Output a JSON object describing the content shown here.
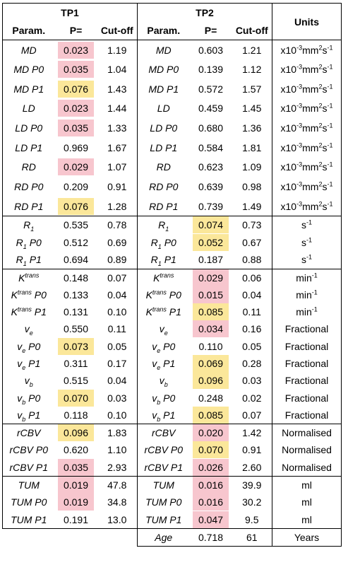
{
  "header": {
    "tp1": "TP1",
    "tp2": "TP2",
    "units": "Units",
    "param": "Param.",
    "p": "P=",
    "cutoff": "Cut-off"
  },
  "groups": [
    {
      "rows": [
        {
          "tp1": {
            "param": "MD",
            "p": "0.023",
            "hl": "pink",
            "cut": "1.19"
          },
          "tp2": {
            "param": "MD",
            "p": "0.603",
            "hl": "",
            "cut": "1.21"
          },
          "units": "x10-3mm2s-1"
        },
        {
          "tp1": {
            "param": "MD P0",
            "p": "0.035",
            "hl": "pink",
            "cut": "1.04"
          },
          "tp2": {
            "param": "MD P0",
            "p": "0.139",
            "hl": "",
            "cut": "1.12"
          },
          "units": "x10-3mm2s-1"
        },
        {
          "tp1": {
            "param": "MD P1",
            "p": "0.076",
            "hl": "yellow",
            "cut": "1.43"
          },
          "tp2": {
            "param": "MD P1",
            "p": "0.572",
            "hl": "",
            "cut": "1.57"
          },
          "units": "x10-3mm2s-1"
        },
        {
          "tp1": {
            "param": "LD",
            "p": "0.023",
            "hl": "pink",
            "cut": "1.44"
          },
          "tp2": {
            "param": "LD",
            "p": "0.459",
            "hl": "",
            "cut": "1.45"
          },
          "units": "x10-3mm2s-1"
        },
        {
          "tp1": {
            "param": "LD P0",
            "p": "0.035",
            "hl": "pink",
            "cut": "1.33"
          },
          "tp2": {
            "param": "LD P0",
            "p": "0.680",
            "hl": "",
            "cut": "1.36"
          },
          "units": "x10-3mm2s-1"
        },
        {
          "tp1": {
            "param": "LD P1",
            "p": "0.969",
            "hl": "",
            "cut": "1.67"
          },
          "tp2": {
            "param": "LD P1",
            "p": "0.584",
            "hl": "",
            "cut": "1.81"
          },
          "units": "x10-3mm2s-1"
        },
        {
          "tp1": {
            "param": "RD",
            "p": "0.029",
            "hl": "pink",
            "cut": "1.07"
          },
          "tp2": {
            "param": "RD",
            "p": "0.623",
            "hl": "",
            "cut": "1.09"
          },
          "units": "x10-3mm2s-1"
        },
        {
          "tp1": {
            "param": "RD P0",
            "p": "0.209",
            "hl": "",
            "cut": "0.91"
          },
          "tp2": {
            "param": "RD P0",
            "p": "0.639",
            "hl": "",
            "cut": "0.98"
          },
          "units": "x10-3mm2s-1"
        },
        {
          "tp1": {
            "param": "RD P1",
            "p": "0.076",
            "hl": "yellow",
            "cut": "1.28"
          },
          "tp2": {
            "param": "RD P1",
            "p": "0.739",
            "hl": "",
            "cut": "1.49"
          },
          "units": "x10-3mm2s-1"
        }
      ]
    },
    {
      "rows": [
        {
          "tp1": {
            "param": "R1",
            "p": "0.535",
            "hl": "",
            "cut": "0.78"
          },
          "tp2": {
            "param": "R1",
            "p": "0.074",
            "hl": "yellow",
            "cut": "0.73"
          },
          "units": "s-1"
        },
        {
          "tp1": {
            "param": "R1 P0",
            "p": "0.512",
            "hl": "",
            "cut": "0.69"
          },
          "tp2": {
            "param": "R1 P0",
            "p": "0.052",
            "hl": "yellow",
            "cut": "0.67"
          },
          "units": "s-1"
        },
        {
          "tp1": {
            "param": "R1 P1",
            "p": "0.694",
            "hl": "",
            "cut": "0.89"
          },
          "tp2": {
            "param": "R1 P1",
            "p": "0.187",
            "hl": "",
            "cut": "0.88"
          },
          "units": "s-1"
        }
      ]
    },
    {
      "rows": [
        {
          "tp1": {
            "param": "Ktrans",
            "p": "0.148",
            "hl": "",
            "cut": "0.07"
          },
          "tp2": {
            "param": "Ktrans",
            "p": "0.029",
            "hl": "pink",
            "cut": "0.06"
          },
          "units": "min-1"
        },
        {
          "tp1": {
            "param": "Ktrans P0",
            "p": "0.133",
            "hl": "",
            "cut": "0.04"
          },
          "tp2": {
            "param": "Ktrans P0",
            "p": "0.015",
            "hl": "pink",
            "cut": "0.04"
          },
          "units": "min-1"
        },
        {
          "tp1": {
            "param": "Ktrans P1",
            "p": "0.131",
            "hl": "",
            "cut": "0.10"
          },
          "tp2": {
            "param": "Ktrans P1",
            "p": "0.085",
            "hl": "yellow",
            "cut": "0.11"
          },
          "units": "min-1"
        },
        {
          "tp1": {
            "param": "ve",
            "p": "0.550",
            "hl": "",
            "cut": "0.11"
          },
          "tp2": {
            "param": "ve",
            "p": "0.034",
            "hl": "pink",
            "cut": "0.16"
          },
          "units": "Fractional"
        },
        {
          "tp1": {
            "param": "ve P0",
            "p": "0.073",
            "hl": "yellow",
            "cut": "0.05"
          },
          "tp2": {
            "param": "ve P0",
            "p": "0.110",
            "hl": "",
            "cut": "0.05"
          },
          "units": "Fractional"
        },
        {
          "tp1": {
            "param": "ve P1",
            "p": "0.311",
            "hl": "",
            "cut": "0.17"
          },
          "tp2": {
            "param": "ve P1",
            "p": "0.069",
            "hl": "yellow",
            "cut": "0.28"
          },
          "units": "Fractional"
        },
        {
          "tp1": {
            "param": "vb",
            "p": "0.515",
            "hl": "",
            "cut": "0.04"
          },
          "tp2": {
            "param": "vb",
            "p": "0.096",
            "hl": "yellow",
            "cut": "0.03"
          },
          "units": "Fractional"
        },
        {
          "tp1": {
            "param": "vb P0",
            "p": "0.070",
            "hl": "yellow",
            "cut": "0.03"
          },
          "tp2": {
            "param": "vb P0",
            "p": "0.248",
            "hl": "",
            "cut": "0.02"
          },
          "units": "Fractional"
        },
        {
          "tp1": {
            "param": "vb P1",
            "p": "0.118",
            "hl": "",
            "cut": "0.10"
          },
          "tp2": {
            "param": "vb P1",
            "p": "0.085",
            "hl": "yellow",
            "cut": "0.07"
          },
          "units": "Fractional"
        }
      ]
    },
    {
      "rows": [
        {
          "tp1": {
            "param": "rCBV",
            "p": "0.096",
            "hl": "yellow",
            "cut": "1.83"
          },
          "tp2": {
            "param": "rCBV",
            "p": "0.020",
            "hl": "pink",
            "cut": "1.42"
          },
          "units": "Normalised"
        },
        {
          "tp1": {
            "param": "rCBV P0",
            "p": "0.620",
            "hl": "",
            "cut": "1.10"
          },
          "tp2": {
            "param": "rCBV P0",
            "p": "0.070",
            "hl": "yellow",
            "cut": "0.91"
          },
          "units": "Normalised"
        },
        {
          "tp1": {
            "param": "rCBV P1",
            "p": "0.035",
            "hl": "pink",
            "cut": "2.93"
          },
          "tp2": {
            "param": "rCBV P1",
            "p": "0.026",
            "hl": "pink",
            "cut": "2.60"
          },
          "units": "Normalised"
        }
      ]
    },
    {
      "rows": [
        {
          "tp1": {
            "param": "TUM",
            "p": "0.019",
            "hl": "pink",
            "cut": "47.8"
          },
          "tp2": {
            "param": "TUM",
            "p": "0.016",
            "hl": "pink",
            "cut": "39.9"
          },
          "units": "ml"
        },
        {
          "tp1": {
            "param": "TUM P0",
            "p": "0.019",
            "hl": "pink",
            "cut": "34.8"
          },
          "tp2": {
            "param": "TUM P0",
            "p": "0.016",
            "hl": "pink",
            "cut": "30.2"
          },
          "units": "ml"
        },
        {
          "tp1": {
            "param": "TUM P1",
            "p": "0.191",
            "hl": "",
            "cut": "13.0"
          },
          "tp2": {
            "param": "TUM P1",
            "p": "0.047",
            "hl": "pink",
            "cut": "9.5"
          },
          "units": "ml"
        }
      ]
    }
  ],
  "age": {
    "param": "Age",
    "p": "0.718",
    "cut": "61",
    "units": "Years"
  },
  "colors": {
    "pink": "#f7c6ce",
    "yellow": "#fbe79a"
  }
}
